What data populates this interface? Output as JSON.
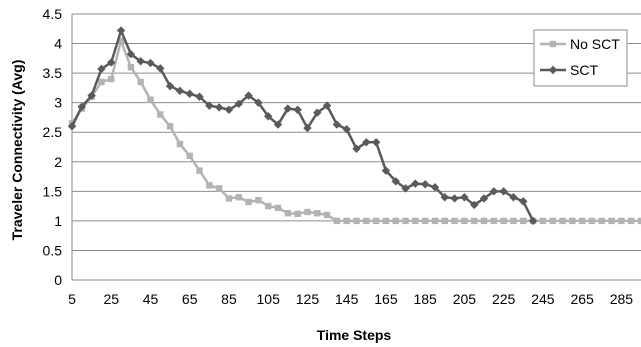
{
  "chart_data": {
    "type": "line",
    "xlabel": "Time Steps",
    "ylabel": "Traveler Connectivity (Avg)",
    "xlim": [
      5,
      295
    ],
    "ylim": [
      0,
      4.5
    ],
    "x_ticks": [
      5,
      25,
      45,
      65,
      85,
      105,
      125,
      145,
      165,
      185,
      205,
      225,
      245,
      265,
      285
    ],
    "y_ticks": [
      "0",
      "0.5",
      "1",
      "1.5",
      "2",
      "2.5",
      "3",
      "3.5",
      "4",
      "4.5"
    ],
    "grid": "horizontal",
    "legend_position": "top-right",
    "series": [
      {
        "name": "No SCT",
        "color": "#b3b3b3",
        "marker": "square",
        "x": [
          5,
          10,
          15,
          20,
          25,
          30,
          35,
          40,
          45,
          50,
          55,
          60,
          65,
          70,
          75,
          80,
          85,
          90,
          95,
          100,
          105,
          110,
          115,
          120,
          125,
          130,
          135,
          140,
          145,
          150,
          155,
          160,
          165,
          170,
          175,
          180,
          185,
          190,
          195,
          200,
          205,
          210,
          215,
          220,
          225,
          230,
          235,
          240,
          245,
          250,
          255,
          260,
          265,
          270,
          275,
          280,
          285,
          290,
          295
        ],
        "values": [
          2.65,
          2.9,
          3.1,
          3.35,
          3.4,
          4.05,
          3.6,
          3.35,
          3.05,
          2.8,
          2.6,
          2.3,
          2.1,
          1.85,
          1.6,
          1.55,
          1.38,
          1.4,
          1.32,
          1.35,
          1.25,
          1.22,
          1.13,
          1.12,
          1.15,
          1.13,
          1.1,
          1.0,
          1.0,
          1.0,
          1.0,
          1.0,
          1.0,
          1.0,
          1.0,
          1.0,
          1.0,
          1.0,
          1.0,
          1.0,
          1.0,
          1.0,
          1.0,
          1.0,
          1.0,
          1.0,
          1.0,
          1.0,
          1.0,
          1.0,
          1.0,
          1.0,
          1.0,
          1.0,
          1.0,
          1.0,
          1.0,
          1.0,
          1.0
        ]
      },
      {
        "name": "SCT",
        "color": "#5a5a5a",
        "marker": "diamond",
        "x": [
          5,
          10,
          15,
          20,
          25,
          30,
          35,
          40,
          45,
          50,
          55,
          60,
          65,
          70,
          75,
          80,
          85,
          90,
          95,
          100,
          105,
          110,
          115,
          120,
          125,
          130,
          135,
          140,
          145,
          150,
          155,
          160,
          165,
          170,
          175,
          180,
          185,
          190,
          195,
          200,
          205,
          210,
          215,
          220,
          225,
          230,
          235,
          240
        ],
        "values": [
          2.6,
          2.93,
          3.12,
          3.57,
          3.68,
          4.22,
          3.82,
          3.7,
          3.67,
          3.58,
          3.28,
          3.2,
          3.15,
          3.1,
          2.95,
          2.92,
          2.88,
          2.98,
          3.12,
          3.0,
          2.77,
          2.63,
          2.9,
          2.88,
          2.57,
          2.83,
          2.95,
          2.63,
          2.55,
          2.22,
          2.33,
          2.33,
          1.85,
          1.67,
          1.55,
          1.63,
          1.62,
          1.57,
          1.4,
          1.38,
          1.4,
          1.27,
          1.38,
          1.5,
          1.5,
          1.4,
          1.33,
          1.0
        ]
      }
    ]
  }
}
